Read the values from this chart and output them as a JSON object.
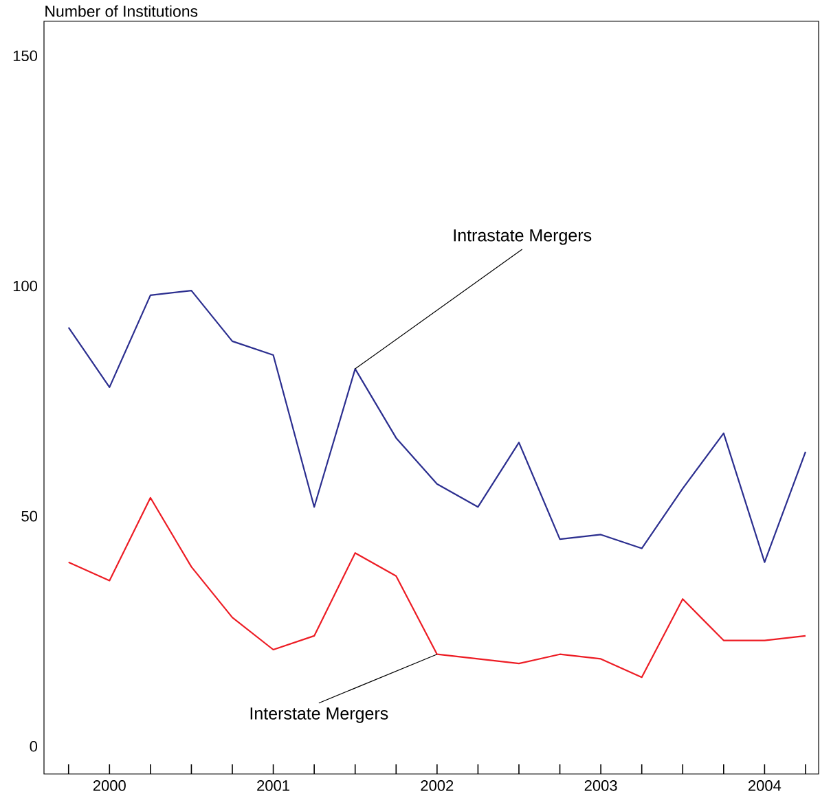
{
  "chart_data": {
    "type": "line",
    "ylabel": "Number of Institutions",
    "x": [
      2000.25,
      2000.5,
      2000.75,
      2001.0,
      2001.25,
      2001.5,
      2001.75,
      2002.0,
      2002.25,
      2002.5,
      2002.75,
      2003.0,
      2003.25,
      2003.5,
      2003.75,
      2004.0,
      2004.25,
      2004.5,
      2004.75
    ],
    "series": [
      {
        "color": "#2b2e8f",
        "values": [
          91,
          78,
          98,
          99,
          88,
          85,
          52,
          82,
          67,
          57,
          52,
          66,
          45,
          46,
          43,
          56,
          68,
          40,
          64
        ]
      },
      {
        "color": "#ed1c24",
        "values": [
          40,
          36,
          54,
          39,
          28,
          21,
          24,
          42,
          37,
          20,
          19,
          18,
          20,
          19,
          15,
          32,
          23,
          23,
          24
        ]
      }
    ],
    "xlim": [
      2000.1,
      2004.83
    ],
    "ylim": [
      -6,
      157.5
    ],
    "yticks": [
      0,
      50,
      100,
      150
    ],
    "xticks": [
      {
        "value": 2000.25,
        "label": null
      },
      {
        "value": 2000.5,
        "label": "2000"
      },
      {
        "value": 2000.75,
        "label": null
      },
      {
        "value": 2001.0,
        "label": null
      },
      {
        "value": 2001.25,
        "label": null
      },
      {
        "value": 2001.5,
        "label": "2001"
      },
      {
        "value": 2001.75,
        "label": null
      },
      {
        "value": 2002.0,
        "label": null
      },
      {
        "value": 2002.25,
        "label": null
      },
      {
        "value": 2002.5,
        "label": "2002"
      },
      {
        "value": 2002.75,
        "label": null
      },
      {
        "value": 2003.0,
        "label": null
      },
      {
        "value": 2003.25,
        "label": null
      },
      {
        "value": 2003.5,
        "label": "2003"
      },
      {
        "value": 2003.75,
        "label": null
      },
      {
        "value": 2004.0,
        "label": null
      },
      {
        "value": 2004.25,
        "label": null
      },
      {
        "value": 2004.5,
        "label": "2004"
      },
      {
        "value": 2004.75,
        "label": null
      }
    ],
    "annotations": [
      {
        "text": "Intrastate Mergers",
        "x": 2002.0,
        "y": 82
      },
      {
        "text": "Interstate Mergers",
        "x": 2002.5,
        "y": 20
      }
    ],
    "grid": false,
    "marker": "none",
    "line_style": "solid"
  }
}
